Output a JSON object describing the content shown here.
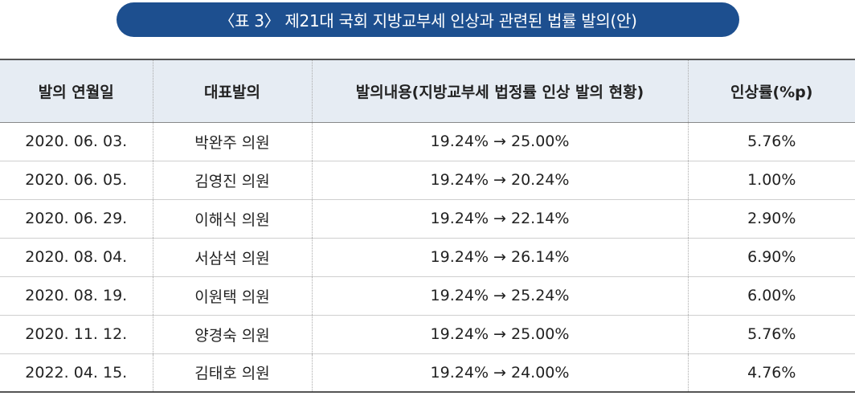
{
  "title": "〈표 3〉 제21대 국회 지방교부세 인상과 관련된 법률 발의(안)",
  "table": {
    "headers": [
      "발의 연월일",
      "대표발의",
      "발의내용(지방교부세 법정률 인상 발의 현황)",
      "인상률(%p)"
    ],
    "rows": [
      [
        "2020. 06. 03.",
        "박완주 의원",
        "19.24% → 25.00%",
        "5.76%"
      ],
      [
        "2020. 06. 05.",
        "김영진 의원",
        "19.24% → 20.24%",
        "1.00%"
      ],
      [
        "2020. 06. 29.",
        "이해식 의원",
        "19.24% → 22.14%",
        "2.90%"
      ],
      [
        "2020. 08. 04.",
        "서삼석 의원",
        "19.24% → 26.14%",
        "6.90%"
      ],
      [
        "2020. 08. 19.",
        "이원택 의원",
        "19.24% → 25.24%",
        "6.00%"
      ],
      [
        "2020. 11. 12.",
        "양경숙 의원",
        "19.24% → 25.00%",
        "5.76%"
      ],
      [
        "2022. 04. 15.",
        "김태호 의원",
        "19.24% → 24.00%",
        "4.76%"
      ]
    ]
  },
  "colors": {
    "title_bg": "#1d4f8f",
    "header_bg": "#e6ecf3"
  }
}
